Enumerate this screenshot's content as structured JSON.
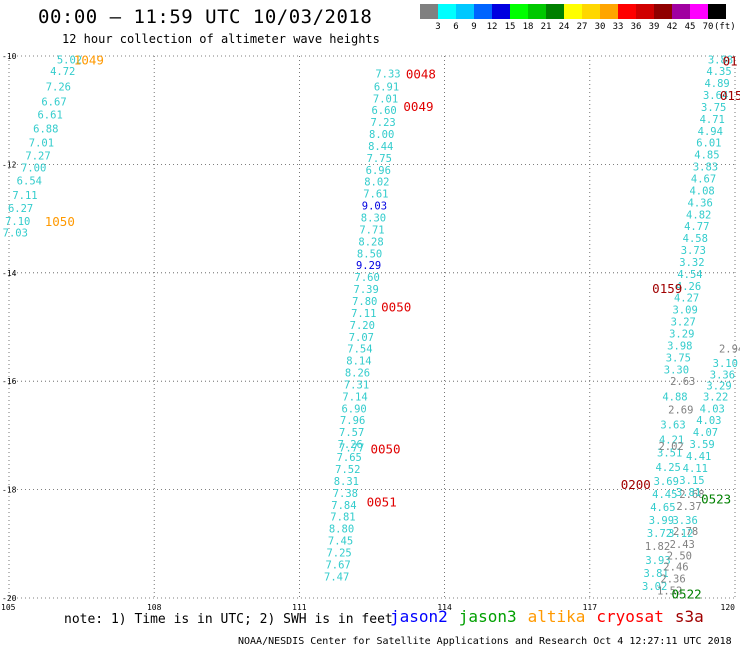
{
  "header": {
    "title": "00:00 – 11:59 UTC 10/03/2018",
    "subtitle": "12 hour collection of altimeter wave heights"
  },
  "color_scale": {
    "unit": "(ft)",
    "items": [
      {
        "label": "",
        "color": "#808080"
      },
      {
        "label": "3",
        "color": "#00ffff"
      },
      {
        "label": "6",
        "color": "#00c8ff"
      },
      {
        "label": "9",
        "color": "#0064ff"
      },
      {
        "label": "12",
        "color": "#0000e0"
      },
      {
        "label": "15",
        "color": "#00ff00"
      },
      {
        "label": "18",
        "color": "#00c800"
      },
      {
        "label": "21",
        "color": "#008000"
      },
      {
        "label": "24",
        "color": "#ffff00"
      },
      {
        "label": "27",
        "color": "#ffd700"
      },
      {
        "label": "30",
        "color": "#ffa500"
      },
      {
        "label": "33",
        "color": "#ff0000"
      },
      {
        "label": "36",
        "color": "#d00000"
      },
      {
        "label": "39",
        "color": "#900000"
      },
      {
        "label": "42",
        "color": "#a000a0"
      },
      {
        "label": "45",
        "color": "#ff00ff"
      },
      {
        "label": "70",
        "color": "#000000"
      }
    ]
  },
  "map": {
    "lon_min": 105,
    "lon_max": 120,
    "lat_min": -20,
    "lat_max": -10,
    "y_ticks": [
      {
        "lat": -10,
        "label": "-10"
      },
      {
        "lat": -12,
        "label": "-12"
      },
      {
        "lat": -14,
        "label": "-14"
      },
      {
        "lat": -16,
        "label": "-16"
      },
      {
        "lat": -18,
        "label": "-18"
      },
      {
        "lat": -20,
        "label": "-20"
      }
    ],
    "x_ticks": [
      {
        "lon": 105,
        "label": "105"
      },
      {
        "lon": 108,
        "label": "108"
      },
      {
        "lon": 111,
        "label": "111"
      },
      {
        "lon": 114,
        "label": "114"
      },
      {
        "lon": 117,
        "label": "117"
      },
      {
        "lon": 120,
        "label": "120"
      }
    ],
    "tracks": [
      {
        "satellite": "altika",
        "color": "#33cccc",
        "points": [
          {
            "lon": 106.25,
            "lat": -10.06,
            "v": "5.02"
          },
          {
            "lon": 106.11,
            "lat": -10.28,
            "v": "4.72"
          },
          {
            "lon": 106.02,
            "lat": -10.56,
            "v": "7.26"
          },
          {
            "lon": 105.93,
            "lat": -10.84,
            "v": "6.67"
          },
          {
            "lon": 105.85,
            "lat": -11.08,
            "v": "6.61"
          },
          {
            "lon": 105.76,
            "lat": -11.34,
            "v": "6.88"
          },
          {
            "lon": 105.67,
            "lat": -11.6,
            "v": "7.01"
          },
          {
            "lon": 105.6,
            "lat": -11.84,
            "v": "7.27"
          },
          {
            "lon": 105.51,
            "lat": -12.06,
            "v": "7.00"
          },
          {
            "lon": 105.42,
            "lat": -12.3,
            "v": "6.54"
          },
          {
            "lon": 105.33,
            "lat": -12.56,
            "v": "7.11"
          },
          {
            "lon": 105.24,
            "lat": -12.8,
            "v": "6.27"
          },
          {
            "lon": 105.18,
            "lat": -13.04,
            "v": "7.10"
          },
          {
            "lon": 105.13,
            "lat": -13.26,
            "v": "7.03"
          }
        ]
      },
      {
        "satellite": "jason2",
        "color": "#33cccc",
        "points": [
          {
            "lon": 112.83,
            "lat": -10.32,
            "v": "7.33"
          },
          {
            "lon": 112.8,
            "lat": -10.56,
            "v": "6.91"
          },
          {
            "lon": 112.78,
            "lat": -10.78,
            "v": "7.01"
          },
          {
            "lon": 112.75,
            "lat": -11.0,
            "v": "6.60"
          },
          {
            "lon": 112.73,
            "lat": -11.22,
            "v": "7.23"
          },
          {
            "lon": 112.7,
            "lat": -11.44,
            "v": "8.00"
          },
          {
            "lon": 112.68,
            "lat": -11.66,
            "v": "8.44"
          },
          {
            "lon": 112.65,
            "lat": -11.88,
            "v": "7.75"
          },
          {
            "lon": 112.63,
            "lat": -12.1,
            "v": "6.96"
          },
          {
            "lon": 112.6,
            "lat": -12.32,
            "v": "8.02"
          },
          {
            "lon": 112.58,
            "lat": -12.54,
            "v": "7.61"
          },
          {
            "lon": 112.55,
            "lat": -12.76,
            "v": "9.03",
            "c": "#0000e0"
          },
          {
            "lon": 112.53,
            "lat": -12.98,
            "v": "8.30"
          },
          {
            "lon": 112.5,
            "lat": -13.2,
            "v": "7.71"
          },
          {
            "lon": 112.48,
            "lat": -13.42,
            "v": "8.28"
          },
          {
            "lon": 112.45,
            "lat": -13.64,
            "v": "8.50"
          },
          {
            "lon": 112.43,
            "lat": -13.86,
            "v": "9.29",
            "c": "#0000e0"
          },
          {
            "lon": 112.4,
            "lat": -14.08,
            "v": "7.60"
          },
          {
            "lon": 112.38,
            "lat": -14.3,
            "v": "7.39"
          },
          {
            "lon": 112.35,
            "lat": -14.52,
            "v": "7.80"
          },
          {
            "lon": 112.33,
            "lat": -14.74,
            "v": "7.11"
          },
          {
            "lon": 112.3,
            "lat": -14.96,
            "v": "7.20"
          },
          {
            "lon": 112.28,
            "lat": -15.18,
            "v": "7.07"
          },
          {
            "lon": 112.25,
            "lat": -15.4,
            "v": "7.54"
          },
          {
            "lon": 112.23,
            "lat": -15.62,
            "v": "8.14"
          },
          {
            "lon": 112.2,
            "lat": -15.84,
            "v": "8.26"
          },
          {
            "lon": 112.18,
            "lat": -16.06,
            "v": "7.31"
          },
          {
            "lon": 112.15,
            "lat": -16.28,
            "v": "7.14"
          },
          {
            "lon": 112.13,
            "lat": -16.5,
            "v": "6.90"
          },
          {
            "lon": 112.1,
            "lat": -16.72,
            "v": "7.96"
          },
          {
            "lon": 112.08,
            "lat": -16.94,
            "v": "7.57"
          },
          {
            "lon": 112.05,
            "lat": -17.16,
            "v": "7.26"
          },
          {
            "lon": 112.08,
            "lat": -17.22,
            "v": "7.77"
          },
          {
            "lon": 112.03,
            "lat": -17.4,
            "v": "7.65"
          },
          {
            "lon": 112.0,
            "lat": -17.62,
            "v": "7.52"
          },
          {
            "lon": 111.97,
            "lat": -17.84,
            "v": "8.31"
          },
          {
            "lon": 111.95,
            "lat": -18.06,
            "v": "7.38"
          },
          {
            "lon": 111.92,
            "lat": -18.28,
            "v": "7.84"
          },
          {
            "lon": 111.9,
            "lat": -18.5,
            "v": "7.81"
          },
          {
            "lon": 111.87,
            "lat": -18.72,
            "v": "8.80"
          },
          {
            "lon": 111.85,
            "lat": -18.94,
            "v": "7.45"
          },
          {
            "lon": 111.82,
            "lat": -19.16,
            "v": "7.25"
          },
          {
            "lon": 111.8,
            "lat": -19.38,
            "v": "7.67"
          },
          {
            "lon": 111.77,
            "lat": -19.6,
            "v": "7.47"
          }
        ]
      },
      {
        "satellite": "jason3",
        "color": "#33cccc",
        "points": [
          {
            "lon": 119.7,
            "lat": -10.06,
            "v": "3.88"
          },
          {
            "lon": 119.67,
            "lat": -10.28,
            "v": "4.35"
          },
          {
            "lon": 119.63,
            "lat": -10.5,
            "v": "4.89"
          },
          {
            "lon": 119.6,
            "lat": -10.72,
            "v": "3.64"
          },
          {
            "lon": 119.56,
            "lat": -10.94,
            "v": "3.75"
          },
          {
            "lon": 119.53,
            "lat": -11.16,
            "v": "4.71"
          },
          {
            "lon": 119.49,
            "lat": -11.38,
            "v": "4.94"
          },
          {
            "lon": 119.46,
            "lat": -11.6,
            "v": "6.01"
          },
          {
            "lon": 119.42,
            "lat": -11.82,
            "v": "4.85"
          },
          {
            "lon": 119.39,
            "lat": -12.04,
            "v": "3.83"
          },
          {
            "lon": 119.35,
            "lat": -12.26,
            "v": "4.67"
          },
          {
            "lon": 119.32,
            "lat": -12.48,
            "v": "4.08"
          },
          {
            "lon": 119.28,
            "lat": -12.7,
            "v": "4.36"
          },
          {
            "lon": 119.25,
            "lat": -12.92,
            "v": "4.82"
          },
          {
            "lon": 119.21,
            "lat": -13.14,
            "v": "4.77"
          },
          {
            "lon": 119.18,
            "lat": -13.36,
            "v": "4.58"
          },
          {
            "lon": 119.14,
            "lat": -13.58,
            "v": "3.73"
          },
          {
            "lon": 119.11,
            "lat": -13.8,
            "v": "3.32"
          },
          {
            "lon": 119.07,
            "lat": -14.02,
            "v": "4.54"
          },
          {
            "lon": 119.04,
            "lat": -14.24,
            "v": "4.26"
          },
          {
            "lon": 119.0,
            "lat": -14.46,
            "v": "4.27"
          },
          {
            "lon": 118.97,
            "lat": -14.68,
            "v": "3.09"
          },
          {
            "lon": 118.93,
            "lat": -14.9,
            "v": "3.27"
          },
          {
            "lon": 118.9,
            "lat": -15.12,
            "v": "3.29"
          },
          {
            "lon": 118.86,
            "lat": -15.34,
            "v": "3.98"
          },
          {
            "lon": 118.83,
            "lat": -15.56,
            "v": "3.75"
          },
          {
            "lon": 118.79,
            "lat": -15.78,
            "v": "3.30"
          },
          {
            "lon": 118.76,
            "lat": -16.28,
            "v": "4.88"
          },
          {
            "lon": 118.72,
            "lat": -16.8,
            "v": "3.63"
          },
          {
            "lon": 118.69,
            "lat": -17.08,
            "v": "4.21"
          },
          {
            "lon": 118.65,
            "lat": -17.32,
            "v": "3.51"
          },
          {
            "lon": 118.62,
            "lat": -17.58,
            "v": "4.25"
          },
          {
            "lon": 118.58,
            "lat": -17.84,
            "v": "3.69"
          },
          {
            "lon": 118.55,
            "lat": -18.08,
            "v": "4.45"
          },
          {
            "lon": 118.51,
            "lat": -18.32,
            "v": "4.65"
          },
          {
            "lon": 118.48,
            "lat": -18.56,
            "v": "3.99"
          },
          {
            "lon": 118.44,
            "lat": -18.8,
            "v": "3.72"
          },
          {
            "lon": 118.41,
            "lat": -19.3,
            "v": "3.93"
          },
          {
            "lon": 118.37,
            "lat": -19.54,
            "v": "3.81"
          },
          {
            "lon": 118.34,
            "lat": -19.78,
            "v": "3.02"
          }
        ]
      },
      {
        "satellite": "cryosat",
        "color": "#808080",
        "points": [
          {
            "lon": 119.93,
            "lat": -15.4,
            "v": "2.94"
          },
          {
            "lon": 118.92,
            "lat": -16.0,
            "v": "2.63"
          },
          {
            "lon": 118.88,
            "lat": -16.52,
            "v": "2.69"
          },
          {
            "lon": 118.68,
            "lat": -17.2,
            "v": "2.02"
          },
          {
            "lon": 119.11,
            "lat": -18.08,
            "v": "2.68"
          },
          {
            "lon": 119.05,
            "lat": -18.3,
            "v": "2.37"
          },
          {
            "lon": 118.98,
            "lat": -18.76,
            "v": "2.78"
          },
          {
            "lon": 118.91,
            "lat": -19.0,
            "v": "2.43"
          },
          {
            "lon": 118.85,
            "lat": -19.22,
            "v": "2.50"
          },
          {
            "lon": 118.78,
            "lat": -19.42,
            "v": "2.46"
          },
          {
            "lon": 118.72,
            "lat": -19.64,
            "v": "2.36"
          },
          {
            "lon": 118.65,
            "lat": -19.86,
            "v": "1.52"
          },
          {
            "lon": 118.4,
            "lat": -19.04,
            "v": "1.82"
          }
        ]
      },
      {
        "satellite": "s3a",
        "color": "#33cccc",
        "points": [
          {
            "lon": 119.8,
            "lat": -15.66,
            "v": "3.10"
          },
          {
            "lon": 119.74,
            "lat": -15.88,
            "v": "3.36"
          },
          {
            "lon": 119.67,
            "lat": -16.08,
            "v": "3.29"
          },
          {
            "lon": 119.6,
            "lat": -16.28,
            "v": "3.22"
          },
          {
            "lon": 119.53,
            "lat": -16.5,
            "v": "4.03"
          },
          {
            "lon": 119.46,
            "lat": -16.72,
            "v": "4.03"
          },
          {
            "lon": 119.39,
            "lat": -16.94,
            "v": "4.07"
          },
          {
            "lon": 119.32,
            "lat": -17.16,
            "v": "3.59"
          },
          {
            "lon": 119.25,
            "lat": -17.38,
            "v": "4.41"
          },
          {
            "lon": 119.18,
            "lat": -17.6,
            "v": "4.11"
          },
          {
            "lon": 119.11,
            "lat": -17.82,
            "v": "3.15"
          },
          {
            "lon": 119.04,
            "lat": -18.04,
            "v": "3.81"
          },
          {
            "lon": 118.97,
            "lat": -18.56,
            "v": "3.36"
          },
          {
            "lon": 118.88,
            "lat": -18.8,
            "v": "3.12"
          }
        ]
      }
    ],
    "time_labels": [
      {
        "lon": 106.65,
        "lat": -10.06,
        "text": "1049",
        "color": "#ff9900"
      },
      {
        "lon": 106.05,
        "lat": -13.04,
        "text": "1050",
        "color": "#ff9900"
      },
      {
        "lon": 113.51,
        "lat": -10.32,
        "text": "0048",
        "color": "#e00000"
      },
      {
        "lon": 113.46,
        "lat": -10.92,
        "text": "0049",
        "color": "#e00000"
      },
      {
        "lon": 113.0,
        "lat": -14.62,
        "text": "0050",
        "color": "#e00000"
      },
      {
        "lon": 112.78,
        "lat": -17.24,
        "text": "0050",
        "color": "#e00000"
      },
      {
        "lon": 112.7,
        "lat": -18.22,
        "text": "0051",
        "color": "#e00000"
      },
      {
        "lon": 119.9,
        "lat": -10.08,
        "text": "01",
        "color": "#a00000"
      },
      {
        "lon": 119.92,
        "lat": -10.72,
        "text": "015",
        "color": "#a00000"
      },
      {
        "lon": 118.6,
        "lat": -14.28,
        "text": "0159",
        "color": "#a00000"
      },
      {
        "lon": 117.95,
        "lat": -17.9,
        "text": "0200",
        "color": "#a00000"
      },
      {
        "lon": 119.61,
        "lat": -18.16,
        "text": "0523",
        "color": "#008000"
      },
      {
        "lon": 119.0,
        "lat": -19.92,
        "text": "0522",
        "color": "#008000"
      }
    ]
  },
  "note": "note: 1) Time is in UTC; 2) SWH is in feet",
  "legend": [
    {
      "name": "jason2",
      "color": "#0000ff"
    },
    {
      "name": "jason3",
      "color": "#00a000"
    },
    {
      "name": "altika",
      "color": "#ff9900"
    },
    {
      "name": "cryosat",
      "color": "#ff0000"
    },
    {
      "name": "s3a",
      "color": "#a00000"
    }
  ],
  "footer": "NOAA/NESDIS Center for Satellite Applications and Research   Oct  4 12:27:11 UTC 2018"
}
